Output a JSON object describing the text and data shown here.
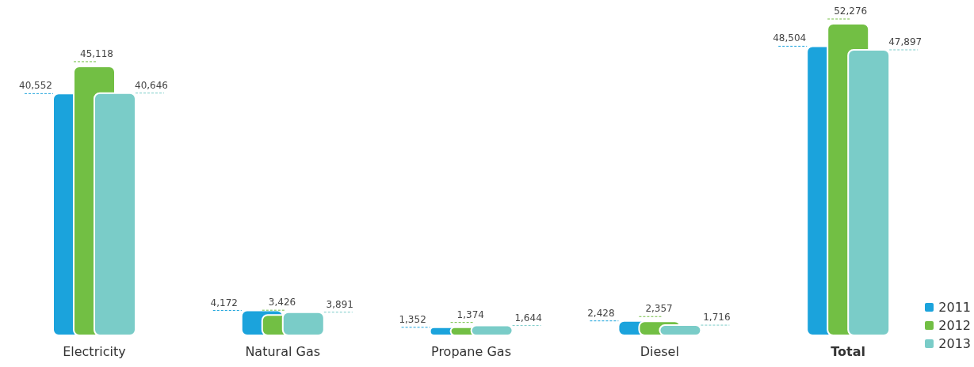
{
  "chart_data": {
    "type": "bar",
    "categories": [
      "Electricity",
      "Natural Gas",
      "Propane Gas",
      "Diesel",
      "Total"
    ],
    "series": [
      {
        "name": "2011",
        "color": "#1ba3dc",
        "values": [
          40552,
          4172,
          1352,
          2428,
          48504
        ],
        "value_labels": [
          "40,552",
          "4,172",
          "1,352",
          "2,428",
          "48,504"
        ]
      },
      {
        "name": "2012",
        "color": "#72bf44",
        "values": [
          45118,
          3426,
          1374,
          2357,
          52276
        ],
        "value_labels": [
          "45,118",
          "3,426",
          "1,374",
          "2,357",
          "52,276"
        ]
      },
      {
        "name": "2013",
        "color": "#7accc8",
        "values": [
          40646,
          3891,
          1644,
          1716,
          47897
        ],
        "value_labels": [
          "40,646",
          "3,891",
          "1,644",
          "1,716",
          "47,897"
        ]
      }
    ],
    "legend": "bottom right"
  }
}
